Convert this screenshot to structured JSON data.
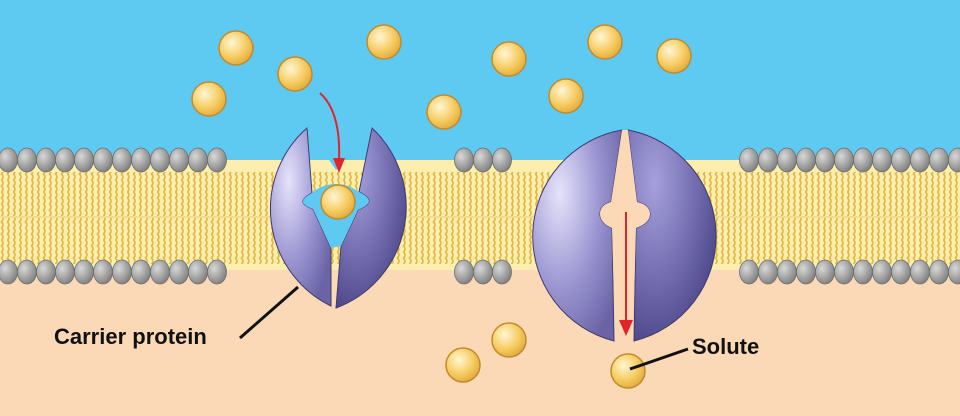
{
  "labels": {
    "carrier_protein": "Carrier protein",
    "solute": "Solute"
  },
  "colors": {
    "extracellular": "#5ecaf2",
    "cytoplasm": "#fbd9b6",
    "lipid_head": "#9b9b9b",
    "lipid_tail": "#e0b53c",
    "protein_light": "#c7c3ec",
    "protein_dark": "#5b5693",
    "solute": "#f6c85f",
    "arrow": "#e0242c"
  }
}
